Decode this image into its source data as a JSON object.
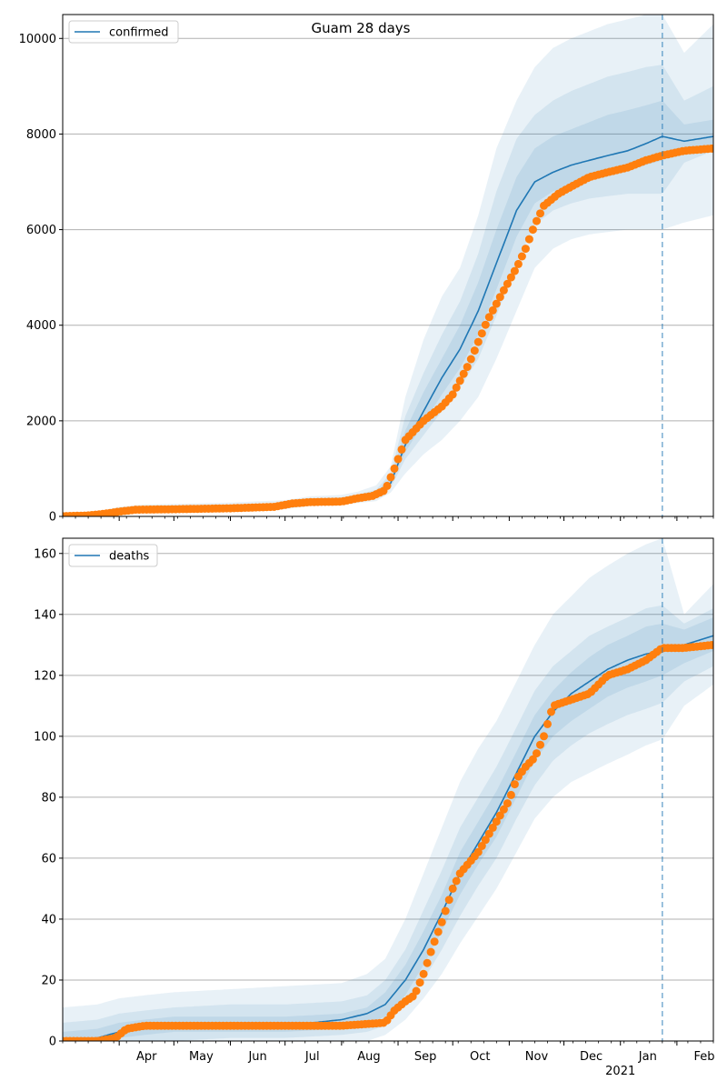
{
  "figure": {
    "title": "Guam 28 days",
    "forecast_start": "2021-01-24"
  },
  "x_axis": {
    "start": "2020-03-01",
    "end": "2021-02-21",
    "month_ticks": [
      {
        "date": "2020-04-01",
        "label": "Apr"
      },
      {
        "date": "2020-05-01",
        "label": "May"
      },
      {
        "date": "2020-06-01",
        "label": "Jun"
      },
      {
        "date": "2020-07-01",
        "label": "Jul"
      },
      {
        "date": "2020-08-01",
        "label": "Aug"
      },
      {
        "date": "2020-09-01",
        "label": "Sep"
      },
      {
        "date": "2020-10-01",
        "label": "Oct"
      },
      {
        "date": "2020-11-01",
        "label": "Nov"
      },
      {
        "date": "2020-12-01",
        "label": "Dec"
      },
      {
        "date": "2021-01-01",
        "label": "Jan"
      },
      {
        "date": "2021-02-01",
        "label": "Feb"
      }
    ],
    "year_label": "2021"
  },
  "colors": {
    "model_line": "#1f77b4",
    "observed_points": "#ff7f0e",
    "band": "#1f77b4",
    "grid": "#b0b0b0"
  },
  "chart_data": [
    {
      "type": "line",
      "legend": "confirmed",
      "legend_position": "top-left",
      "ylim": [
        0,
        10500
      ],
      "yticks": [
        0,
        2000,
        4000,
        6000,
        8000,
        10000
      ],
      "grid": "horizontal",
      "model": {
        "dates": [
          "2020-03-01",
          "2020-03-15",
          "2020-04-01",
          "2020-04-15",
          "2020-05-01",
          "2020-06-01",
          "2020-07-01",
          "2020-07-15",
          "2020-08-01",
          "2020-08-10",
          "2020-08-20",
          "2020-08-28",
          "2020-09-05",
          "2020-09-15",
          "2020-09-25",
          "2020-10-05",
          "2020-10-15",
          "2020-10-25",
          "2020-11-05",
          "2020-11-15",
          "2020-11-25",
          "2020-12-05",
          "2020-12-15",
          "2020-12-25",
          "2021-01-05",
          "2021-01-15",
          "2021-01-24",
          "2021-02-05",
          "2021-02-21"
        ],
        "values": [
          10,
          20,
          100,
          150,
          150,
          170,
          220,
          300,
          330,
          380,
          450,
          700,
          1500,
          2200,
          2900,
          3500,
          4300,
          5300,
          6400,
          7000,
          7200,
          7350,
          7450,
          7550,
          7650,
          7800,
          7950,
          7850,
          7950
        ],
        "bands": [
          {
            "lower": [
              0,
              0,
              50,
              90,
              100,
              110,
              150,
              220,
              250,
              280,
              320,
              500,
              900,
              1300,
              1600,
              2000,
              2500,
              3300,
              4300,
              5200,
              5600,
              5800,
              5900,
              5950,
              6000,
              6000,
              6000,
              6150,
              6300
            ],
            "upper": [
              40,
              60,
              200,
              250,
              260,
              290,
              340,
              420,
              450,
              520,
              650,
              1050,
              2500,
              3700,
              4600,
              5200,
              6300,
              7700,
              8700,
              9400,
              9800,
              10000,
              10150,
              10300,
              10400,
              10500,
              10500,
              9700,
              10300
            ]
          },
          {
            "lower": [
              0,
              5,
              70,
              110,
              120,
              140,
              180,
              250,
              280,
              320,
              380,
              600,
              1200,
              1700,
              2200,
              2700,
              3300,
              4200,
              5300,
              6100,
              6400,
              6550,
              6650,
              6700,
              6750,
              6750,
              6750,
              7400,
              7650
            ],
            "upper": [
              25,
              45,
              160,
              200,
              210,
              230,
              280,
              370,
              400,
              460,
              560,
              900,
              2100,
              3000,
              3800,
              4500,
              5500,
              6800,
              7900,
              8400,
              8700,
              8900,
              9050,
              9200,
              9300,
              9400,
              9450,
              8700,
              9000
            ]
          },
          {
            "lower": [
              0,
              10,
              85,
              130,
              140,
              160,
              200,
              270,
              300,
              350,
              420,
              650,
              1350,
              1950,
              2550,
              3100,
              3800,
              4750,
              5850,
              6550,
              6800,
              6950,
              7050,
              7150,
              7250,
              7350,
              7450,
              7600,
              7800
            ],
            "upper": [
              15,
              30,
              125,
              175,
              180,
              200,
              250,
              340,
              370,
              420,
              510,
              800,
              1800,
              2600,
              3300,
              4000,
              4900,
              6000,
              7100,
              7700,
              7950,
              8100,
              8250,
              8400,
              8500,
              8600,
              8700,
              8200,
              8300
            ]
          }
        ]
      },
      "observed": {
        "dates": [
          "2020-03-01",
          "2020-03-15",
          "2020-03-25",
          "2020-04-01",
          "2020-04-10",
          "2020-05-01",
          "2020-06-01",
          "2020-06-25",
          "2020-07-05",
          "2020-07-15",
          "2020-08-01",
          "2020-08-10",
          "2020-08-18",
          "2020-08-25",
          "2020-08-30",
          "2020-09-05",
          "2020-09-15",
          "2020-09-25",
          "2020-10-01",
          "2020-10-10",
          "2020-10-20",
          "2020-10-30",
          "2020-11-05",
          "2020-11-10",
          "2020-11-15",
          "2020-11-20",
          "2020-11-28",
          "2020-12-05",
          "2020-12-15",
          "2020-12-25",
          "2021-01-05",
          "2021-01-15",
          "2021-01-24",
          "2021-02-05",
          "2021-02-21"
        ],
        "values": [
          5,
          20,
          60,
          100,
          140,
          150,
          170,
          200,
          270,
          300,
          310,
          380,
          430,
          550,
          1000,
          1600,
          2000,
          2300,
          2550,
          3200,
          4100,
          4800,
          5200,
          5600,
          6100,
          6500,
          6750,
          6900,
          7100,
          7200,
          7300,
          7450,
          7550,
          7650,
          7700
        ]
      }
    },
    {
      "type": "line",
      "legend": "deaths",
      "legend_position": "top-left",
      "ylim": [
        0,
        165
      ],
      "yticks": [
        0,
        20,
        40,
        60,
        80,
        100,
        120,
        140,
        160
      ],
      "grid": "horizontal",
      "model": {
        "dates": [
          "2020-03-01",
          "2020-03-20",
          "2020-04-01",
          "2020-04-15",
          "2020-05-01",
          "2020-06-01",
          "2020-07-01",
          "2020-08-01",
          "2020-08-15",
          "2020-08-25",
          "2020-09-05",
          "2020-09-15",
          "2020-09-25",
          "2020-10-05",
          "2020-10-15",
          "2020-10-25",
          "2020-11-05",
          "2020-11-15",
          "2020-11-25",
          "2020-12-05",
          "2020-12-15",
          "2020-12-25",
          "2021-01-05",
          "2021-01-15",
          "2021-01-24",
          "2021-02-05",
          "2021-02-21"
        ],
        "values": [
          0,
          1,
          3,
          4,
          5,
          5,
          5,
          7,
          9,
          12,
          20,
          30,
          42,
          55,
          65,
          75,
          88,
          100,
          108,
          114,
          118,
          122,
          125,
          127,
          128,
          130,
          133
        ],
        "bands": [
          {
            "lower": [
              0,
              0,
              0,
              0,
              0,
              0,
              0,
              0,
              0,
              2,
              7,
              14,
              22,
              32,
              41,
              50,
              62,
              73,
              80,
              85,
              88,
              91,
              94,
              97,
              99,
              110,
              117
            ],
            "upper": [
              11,
              12,
              14,
              15,
              16,
              17,
              18,
              19,
              22,
              27,
              40,
              55,
              70,
              85,
              96,
              105,
              118,
              130,
              140,
              146,
              152,
              156,
              160,
              163,
              165,
              140,
              150
            ]
          },
          {
            "lower": [
              0,
              0,
              0,
              0,
              0,
              1,
              1,
              2,
              3,
              5,
              12,
              20,
              30,
              41,
              51,
              60,
              73,
              84,
              92,
              97,
              101,
              104,
              107,
              109,
              111,
              118,
              123
            ],
            "upper": [
              6,
              7,
              9,
              10,
              11,
              12,
              12,
              13,
              15,
              20,
              30,
              43,
              56,
              70,
              80,
              90,
              103,
              115,
              123,
              128,
              133,
              136,
              139,
              142,
              143,
              137,
              142
            ]
          },
          {
            "lower": [
              0,
              0,
              1,
              2,
              3,
              3,
              3,
              4,
              6,
              8,
              15,
              25,
              36,
              48,
              58,
              67,
              80,
              92,
              100,
              105,
              109,
              113,
              116,
              118,
              120,
              124,
              128
            ],
            "upper": [
              3,
              4,
              6,
              7,
              8,
              8,
              8,
              9,
              11,
              16,
              25,
              36,
              48,
              62,
              72,
              82,
              95,
              107,
              115,
              121,
              126,
              130,
              133,
              136,
              137,
              135,
              139
            ]
          }
        ]
      },
      "observed": {
        "dates": [
          "2020-03-01",
          "2020-03-20",
          "2020-03-30",
          "2020-04-05",
          "2020-04-15",
          "2020-05-01",
          "2020-06-01",
          "2020-07-01",
          "2020-08-01",
          "2020-08-25",
          "2020-08-30",
          "2020-09-05",
          "2020-09-10",
          "2020-09-15",
          "2020-09-20",
          "2020-09-25",
          "2020-10-01",
          "2020-10-05",
          "2020-10-15",
          "2020-10-25",
          "2020-11-01",
          "2020-11-05",
          "2020-11-10",
          "2020-11-15",
          "2020-11-20",
          "2020-11-25",
          "2020-12-05",
          "2020-12-15",
          "2020-12-25",
          "2021-01-05",
          "2021-01-15",
          "2021-01-24",
          "2021-02-05",
          "2021-02-21"
        ],
        "values": [
          0,
          0,
          1,
          4,
          5,
          5,
          5,
          5,
          5,
          6,
          10,
          13,
          15,
          22,
          31,
          39,
          50,
          55,
          62,
          72,
          79,
          86,
          90,
          93,
          100,
          110,
          112,
          114,
          120,
          122,
          125,
          129,
          129,
          130
        ]
      }
    }
  ]
}
